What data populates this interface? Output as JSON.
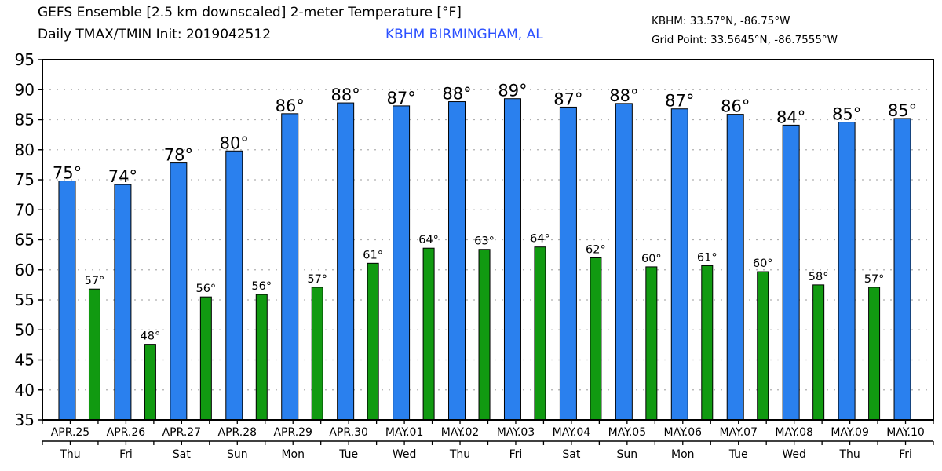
{
  "header": {
    "title_line1": "GEFS Ensemble [2.5 km downscaled] 2-meter Temperature [°F]",
    "title_line2": "Daily TMAX/TMIN Init: 2019042512",
    "station_name": "KBHM BIRMINGHAM, AL",
    "station_coords": "KBHM: 33.57°N, -86.75°W",
    "grid_point": "Grid Point: 33.5645°N, -86.7555°W"
  },
  "colors": {
    "tmax": "#2a80ee",
    "tmin": "#119a11",
    "station_text": "#2b50ff",
    "grid": "#b0b0b0"
  },
  "chart_data": {
    "type": "bar",
    "title": "GEFS Ensemble [2.5 km downscaled] 2-meter Temperature [°F] — Daily TMAX/TMIN",
    "xlabel": "",
    "ylabel": "°F",
    "ylim": [
      35,
      95
    ],
    "yticks": [
      35,
      40,
      45,
      50,
      55,
      60,
      65,
      70,
      75,
      80,
      85,
      90,
      95
    ],
    "grid": true,
    "categories": [
      "APR.25",
      "APR.26",
      "APR.27",
      "APR.28",
      "APR.29",
      "APR.30",
      "MAY.01",
      "MAY.02",
      "MAY.03",
      "MAY.04",
      "MAY.05",
      "MAY.06",
      "MAY.07",
      "MAY.08",
      "MAY.09",
      "MAY.10"
    ],
    "weekdays": [
      "Thu",
      "Fri",
      "Sat",
      "Sun",
      "Mon",
      "Tue",
      "Wed",
      "Thu",
      "Fri",
      "Sat",
      "Sun",
      "Mon",
      "Tue",
      "Wed",
      "Thu",
      "Fri"
    ],
    "series": [
      {
        "name": "TMAX",
        "labels": [
          "75°",
          "74°",
          "78°",
          "80°",
          "86°",
          "88°",
          "87°",
          "88°",
          "89°",
          "87°",
          "88°",
          "87°",
          "86°",
          "84°",
          "85°",
          "85°"
        ],
        "values": [
          74.8,
          74.2,
          77.8,
          79.8,
          86.0,
          87.8,
          87.3,
          88.0,
          88.5,
          87.1,
          87.7,
          86.8,
          85.9,
          84.1,
          84.6,
          85.2
        ]
      },
      {
        "name": "TMIN",
        "labels": [
          "57°",
          "48°",
          "56°",
          "56°",
          "57°",
          "61°",
          "64°",
          "63°",
          "64°",
          "62°",
          "60°",
          "61°",
          "60°",
          "58°",
          "57°",
          null
        ],
        "values": [
          56.8,
          47.6,
          55.5,
          55.9,
          57.1,
          61.1,
          63.6,
          63.4,
          63.8,
          62.0,
          60.5,
          60.7,
          59.7,
          57.5,
          57.1,
          null
        ]
      }
    ]
  }
}
